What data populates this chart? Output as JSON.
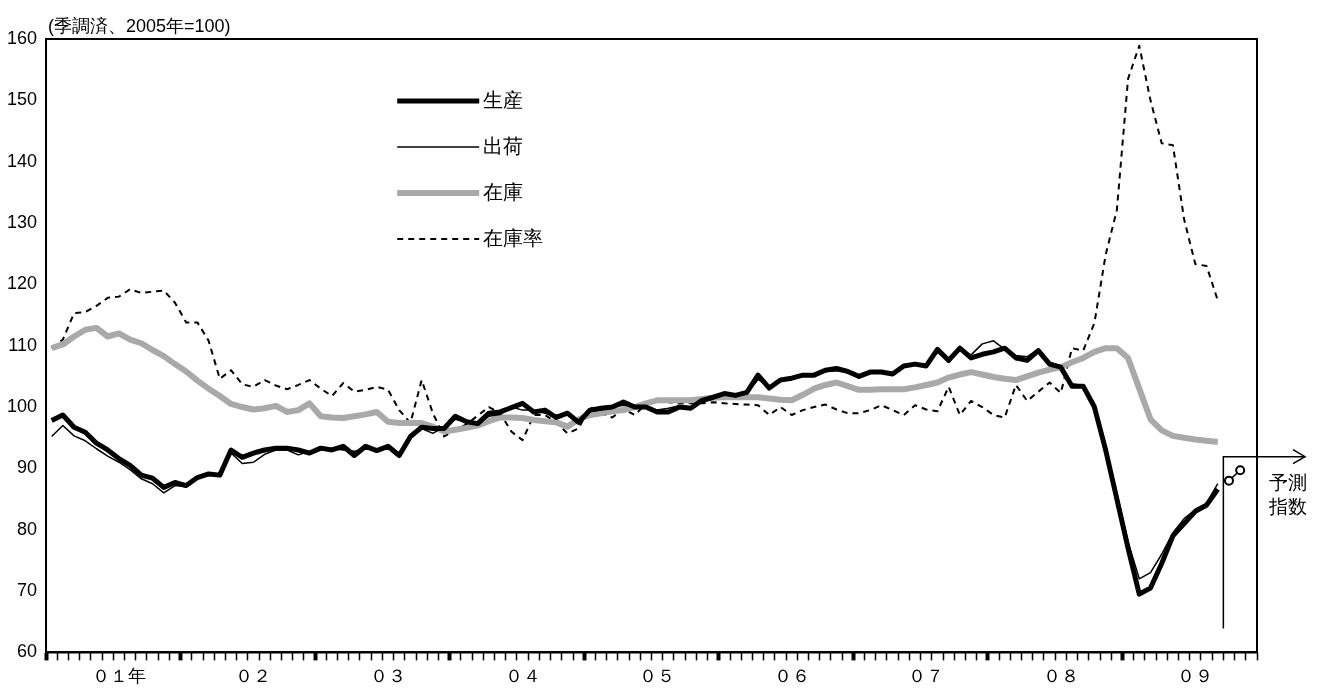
{
  "chart_data": {
    "type": "line",
    "ylabel": "(季調済、2005年=100)",
    "categories": [
      null,
      null,
      null,
      null,
      null,
      null,
      "０１年",
      null,
      null,
      null,
      null,
      null,
      null,
      null,
      null,
      null,
      null,
      null,
      "０２",
      null,
      null,
      null,
      null,
      null,
      null,
      null,
      null,
      null,
      null,
      null,
      "０３",
      null,
      null,
      null,
      null,
      null,
      null,
      null,
      null,
      null,
      null,
      null,
      "０４",
      null,
      null,
      null,
      null,
      null,
      null,
      null,
      null,
      null,
      null,
      null,
      "０５",
      null,
      null,
      null,
      null,
      null,
      null,
      null,
      null,
      null,
      null,
      null,
      "０６",
      null,
      null,
      null,
      null,
      null,
      null,
      null,
      null,
      null,
      null,
      null,
      "０７",
      null,
      null,
      null,
      null,
      null,
      null,
      null,
      null,
      null,
      null,
      null,
      "０８",
      null,
      null,
      null,
      null,
      null,
      null,
      null,
      null,
      null,
      null,
      null,
      "０９",
      null,
      null,
      null,
      null,
      null
    ],
    "ylim": [
      60,
      160
    ],
    "yticks": [
      60,
      70,
      80,
      90,
      100,
      110,
      120,
      130,
      140,
      150,
      160
    ],
    "legend": "top center",
    "marker": "none",
    "line_style": "solid",
    "annotations": [
      "予測指数"
    ],
    "series": [
      {
        "name": "生産",
        "color": "#000000",
        "values": [
          97.8,
          98.7,
          96.7,
          95.9,
          94.1,
          93,
          91.6,
          90.5,
          88.9,
          88.4,
          86.9,
          87.7,
          87.2,
          88.5,
          89.1,
          88.9,
          93,
          91.8,
          92.5,
          93,
          93.3,
          93.3,
          93,
          92.5,
          93.3,
          93,
          93.6,
          92.1,
          93.6,
          92.9,
          93.6,
          92.1,
          95.2,
          96.7,
          96.5,
          96.5,
          98.5,
          97.6,
          97.3,
          99,
          99.2,
          99.9,
          100.6,
          99.2,
          99.5,
          98.3,
          99,
          97.5,
          99.5,
          99.8,
          100,
          100.8,
          100,
          100,
          99.2,
          99.2,
          100,
          99.8,
          101.1,
          101.6,
          102.2,
          101.9,
          102.4,
          105.2,
          103.1,
          104.4,
          104.7,
          105.2,
          105.2,
          106,
          106.3,
          105.8,
          105,
          105.7,
          105.7,
          105.4,
          106.7,
          107,
          106.7,
          109.4,
          107.6,
          109.6,
          108,
          108.6,
          109,
          109.6,
          108,
          107.6,
          109.2,
          107,
          106.5,
          103.4,
          103.4,
          100,
          93,
          85,
          77,
          69.5,
          70.5,
          74.5,
          79,
          81,
          83,
          84,
          86.6,
          null,
          null,
          null
        ]
      },
      {
        "name": "出荷",
        "color": "#000000",
        "values": [
          95.2,
          97,
          95.3,
          94.5,
          93.2,
          92,
          91,
          89.8,
          88.3,
          87.5,
          86,
          87.2,
          87,
          88.3,
          89,
          89,
          92.5,
          90.8,
          91,
          92.3,
          93,
          93,
          92.2,
          92.8,
          93,
          93.3,
          93,
          92.8,
          93.2,
          93.2,
          93.3,
          92.5,
          95,
          96.5,
          95.7,
          96.8,
          98,
          97.5,
          97.5,
          98.5,
          98.8,
          100,
          99.5,
          99.5,
          99,
          98.7,
          99,
          97.8,
          99.3,
          99.5,
          100,
          100.3,
          100.2,
          100.2,
          99.5,
          99.8,
          100.2,
          100,
          100.8,
          101.3,
          102,
          101.7,
          102.3,
          104.5,
          103.3,
          104.3,
          104.5,
          105,
          105,
          105.8,
          105.9,
          105.6,
          105.2,
          105.5,
          105.5,
          105.3,
          106.5,
          107.2,
          106.7,
          109,
          108,
          109.3,
          108.5,
          110.3,
          110.8,
          109.4,
          108.4,
          108.2,
          109.5,
          107.3,
          106.7,
          103.8,
          103.5,
          100.5,
          93.5,
          86,
          78,
          72,
          73,
          76,
          79.5,
          81.8,
          83.3,
          84.3,
          87.5,
          null,
          null,
          null
        ]
      },
      {
        "name": "在庫",
        "color": "#a9a9a9",
        "values": [
          109.6,
          110.2,
          111.5,
          112.6,
          112.9,
          111.5,
          112,
          111,
          110.4,
          109.3,
          108.3,
          107,
          105.8,
          104.3,
          103,
          101.8,
          100.5,
          100,
          99.6,
          99.8,
          100.2,
          99.2,
          99.5,
          100.6,
          98.5,
          98.3,
          98.2,
          98.5,
          98.8,
          99.2,
          97.6,
          97.4,
          97.4,
          97.4,
          96.8,
          96,
          96.3,
          96.6,
          97,
          97.7,
          98.3,
          98.3,
          98.2,
          97.9,
          97.7,
          97.5,
          96.8,
          98,
          98.7,
          99,
          99.3,
          99.5,
          100,
          100.6,
          101.1,
          101.1,
          101.1,
          101.1,
          101.3,
          101.5,
          101.6,
          101.6,
          101.6,
          101.6,
          101.4,
          101.2,
          101.1,
          102,
          103,
          103.6,
          104,
          103.4,
          102.8,
          102.8,
          102.9,
          102.9,
          102.9,
          103.2,
          103.6,
          104,
          104.8,
          105.3,
          105.7,
          105.3,
          104.9,
          104.6,
          104.4,
          105,
          105.6,
          106.1,
          106.5,
          107.3,
          108,
          109,
          109.6,
          109.6,
          108,
          103,
          98,
          96.2,
          95.3,
          95,
          94.7,
          94.5,
          94.3,
          null,
          null,
          null
        ]
      },
      {
        "name": "在庫率",
        "color": "#000000",
        "line_style": "dashed",
        "values": [
          109.6,
          111,
          115.3,
          115.5,
          116.5,
          117.8,
          118,
          119.2,
          118.6,
          118.8,
          119,
          117,
          113.8,
          113.8,
          110.8,
          104.6,
          106,
          103.7,
          103.3,
          104.4,
          103.5,
          102.9,
          103.6,
          104.4,
          103,
          101.8,
          103.9,
          102.5,
          102.8,
          103.3,
          102.8,
          99.5,
          97.4,
          104.4,
          99,
          95.2,
          96.2,
          97.2,
          98.6,
          100,
          99,
          96,
          94.6,
          98.7,
          98.7,
          97.5,
          95.7,
          96.5,
          100,
          99,
          98.3,
          99.7,
          98.7,
          100.5,
          101.1,
          100.8,
          100.6,
          100.6,
          100.6,
          100.8,
          100.6,
          100.5,
          100.4,
          100.3,
          98.7,
          100,
          98.7,
          99.5,
          100,
          100.4,
          99.6,
          99,
          99,
          99.5,
          100.3,
          99.5,
          98.7,
          100.3,
          99.6,
          99.3,
          103.3,
          98.7,
          101,
          100,
          98.7,
          98.3,
          103.6,
          101,
          102.5,
          104,
          102.3,
          109.6,
          109.2,
          113.7,
          124.8,
          132.1,
          153.5,
          158.9,
          150,
          143,
          142.7,
          130.6,
          123.3,
          123,
          117.4,
          null,
          null,
          null
        ]
      },
      {
        "color": "#000000",
        "marker": "circle",
        "values": [
          null,
          null,
          null,
          null,
          null,
          null,
          null,
          null,
          null,
          null,
          null,
          null,
          null,
          null,
          null,
          null,
          null,
          null,
          null,
          null,
          null,
          null,
          null,
          null,
          null,
          null,
          null,
          null,
          null,
          null,
          null,
          null,
          null,
          null,
          null,
          null,
          null,
          null,
          null,
          null,
          null,
          null,
          null,
          null,
          null,
          null,
          null,
          null,
          null,
          null,
          null,
          null,
          null,
          null,
          null,
          null,
          null,
          null,
          null,
          null,
          null,
          null,
          null,
          null,
          null,
          null,
          null,
          null,
          null,
          null,
          null,
          null,
          null,
          null,
          null,
          null,
          null,
          null,
          null,
          null,
          null,
          null,
          null,
          null,
          null,
          null,
          null,
          null,
          null,
          null,
          null,
          null,
          null,
          null,
          null,
          null,
          null,
          null,
          null,
          null,
          null,
          null,
          null,
          null,
          null,
          88,
          89.7,
          null
        ]
      }
    ]
  }
}
